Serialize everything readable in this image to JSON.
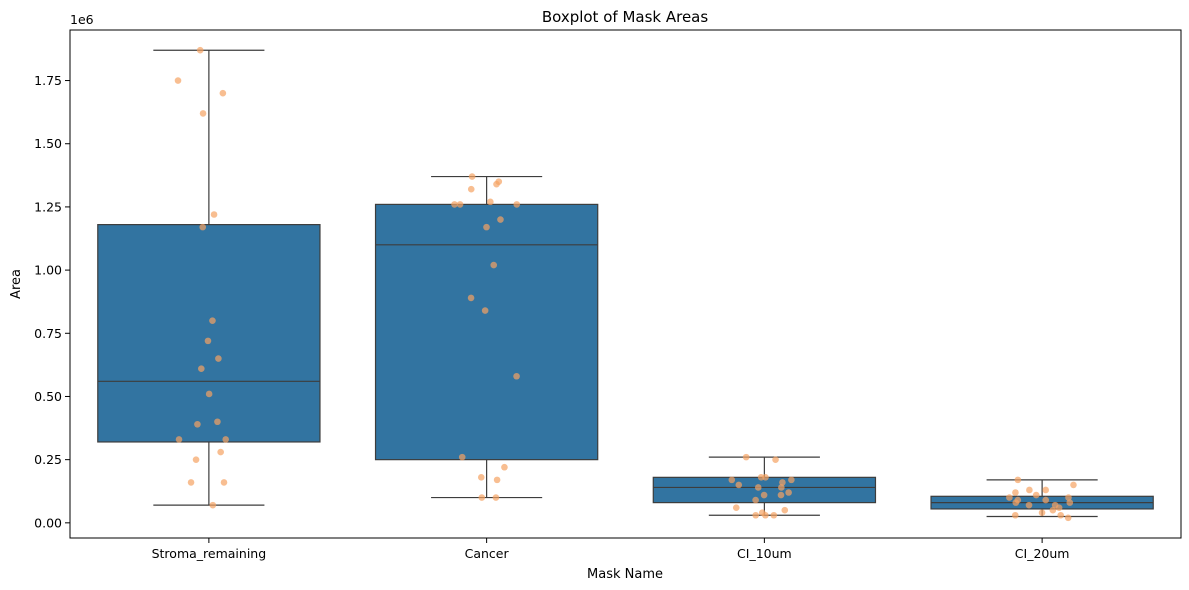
{
  "chart_data": {
    "type": "boxplot",
    "title": "Boxplot of Mask Areas",
    "xlabel": "Mask Name",
    "ylabel": "Area",
    "y_scale_label": "1e6",
    "ylim": [
      -0.06,
      1.95
    ],
    "yticks": [
      0.0,
      0.25,
      0.5,
      0.75,
      1.0,
      1.25,
      1.5,
      1.75
    ],
    "ytick_labels": [
      "0.00",
      "0.25",
      "0.50",
      "0.75",
      "1.00",
      "1.25",
      "1.50",
      "1.75"
    ],
    "grid": false,
    "box_color": "#3274a1",
    "line_color": "#3d3d3d",
    "point_color": "#f5a262",
    "categories": [
      "Stroma_remaining",
      "Cancer",
      "CI_10um",
      "CI_20um"
    ],
    "boxes": [
      {
        "category": "Stroma_remaining",
        "whisker_low": 0.07,
        "q1": 0.32,
        "median": 0.56,
        "q3": 1.18,
        "whisker_high": 1.87
      },
      {
        "category": "Cancer",
        "whisker_low": 0.1,
        "q1": 0.25,
        "median": 1.1,
        "q3": 1.26,
        "whisker_high": 1.37
      },
      {
        "category": "CI_10um",
        "whisker_low": 0.03,
        "q1": 0.08,
        "median": 0.14,
        "q3": 0.18,
        "whisker_high": 0.26
      },
      {
        "category": "CI_20um",
        "whisker_low": 0.025,
        "q1": 0.055,
        "median": 0.08,
        "q3": 0.105,
        "whisker_high": 0.17
      }
    ],
    "points": [
      {
        "category": "Stroma_remaining",
        "values": [
          1.87,
          1.75,
          1.7,
          1.62,
          1.22,
          1.17,
          0.8,
          0.72,
          0.65,
          0.61,
          0.51,
          0.4,
          0.39,
          0.33,
          0.33,
          0.28,
          0.25,
          0.16,
          0.16,
          0.07
        ]
      },
      {
        "category": "Cancer",
        "values": [
          1.37,
          1.35,
          1.34,
          1.32,
          1.27,
          1.26,
          1.26,
          1.26,
          1.2,
          1.17,
          1.02,
          0.89,
          0.84,
          0.58,
          0.26,
          0.22,
          0.18,
          0.17,
          0.1,
          0.1
        ]
      },
      {
        "category": "CI_10um",
        "values": [
          0.26,
          0.25,
          0.18,
          0.18,
          0.17,
          0.17,
          0.16,
          0.15,
          0.14,
          0.14,
          0.12,
          0.11,
          0.11,
          0.09,
          0.06,
          0.05,
          0.04,
          0.03,
          0.03,
          0.03
        ]
      },
      {
        "category": "CI_20um",
        "values": [
          0.17,
          0.15,
          0.13,
          0.13,
          0.12,
          0.11,
          0.1,
          0.1,
          0.09,
          0.09,
          0.08,
          0.08,
          0.07,
          0.07,
          0.06,
          0.05,
          0.04,
          0.03,
          0.03,
          0.02
        ]
      }
    ]
  }
}
